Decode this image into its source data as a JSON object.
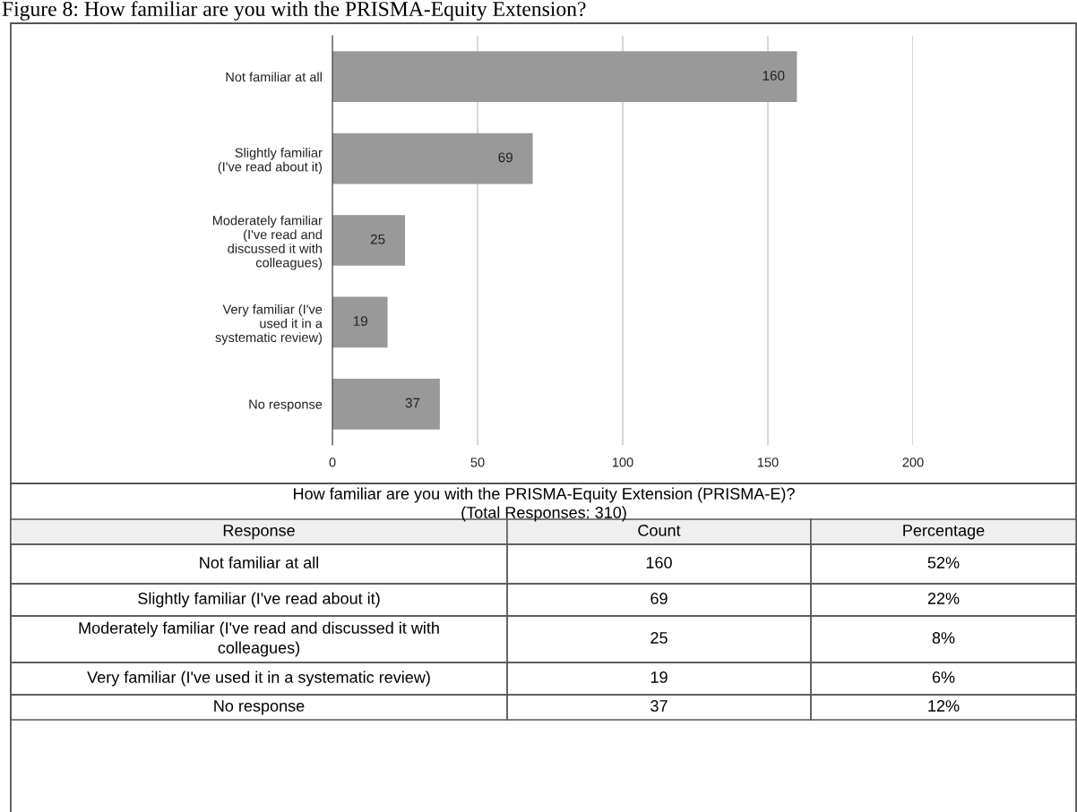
{
  "chart_data": {
    "type": "bar",
    "orientation": "horizontal",
    "title": "Figure 8: How familiar are you with the PRISMA-Equity Extension?",
    "categories": [
      "Not familiar at all",
      "Slightly familiar (I've read about it)",
      "Moderately familiar (I've read and discussed it with colleagues)",
      "Very familiar (I've used it in a systematic review)",
      "No response"
    ],
    "values": [
      160,
      69,
      25,
      19,
      37
    ],
    "color": "#999999",
    "xlim": [
      0,
      200
    ],
    "xticks": [
      0,
      50,
      100,
      150,
      200
    ],
    "grid": "x",
    "data_labels": true,
    "annotations": [
      "How familiar are you with the PRISMA-Equity Extension (PRISMA-E)?",
      "(Total Responses: 310)",
      "Response",
      "Count",
      "Percentage",
      "160",
      "69",
      "25",
      "19",
      "37",
      "52%",
      "22%",
      "8%",
      "6%",
      "12%"
    ]
  }
}
